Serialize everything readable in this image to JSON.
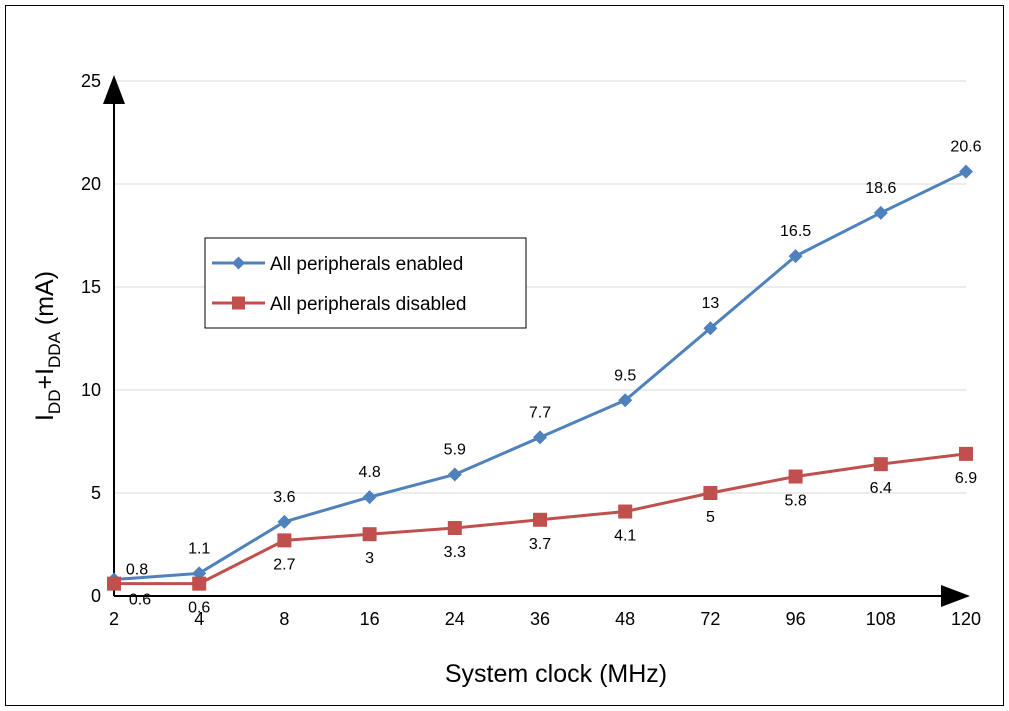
{
  "chart_data": {
    "type": "line",
    "categories": [
      "2",
      "4",
      "8",
      "16",
      "24",
      "36",
      "48",
      "72",
      "96",
      "108",
      "120"
    ],
    "series": [
      {
        "name": "All peripherals enabled",
        "color": "#4f81bd",
        "marker": "diamond",
        "values": [
          0.8,
          1.1,
          3.6,
          4.8,
          5.9,
          7.7,
          9.5,
          13,
          16.5,
          18.6,
          20.6
        ],
        "labels": [
          "0.8",
          "1.1",
          "3.6",
          "4.8",
          "5.9",
          "7.7",
          "9.5",
          "13",
          "16.5",
          "18.6",
          "20.6"
        ]
      },
      {
        "name": "All peripherals disabled",
        "color": "#c0504d",
        "marker": "square",
        "values": [
          0.6,
          0.6,
          2.7,
          3,
          3.3,
          3.7,
          4.1,
          5,
          5.8,
          6.4,
          6.9
        ],
        "labels": [
          "0.6",
          "0.6",
          "2.7",
          "3",
          "3.3",
          "3.7",
          "4.1",
          "5",
          "5.8",
          "6.4",
          "6.9"
        ]
      }
    ],
    "xlabel": "System clock (MHz)",
    "ylabel": {
      "base": "I",
      "sub1": "DD",
      "plus": "+I",
      "sub2": "DDA",
      "unit": " (mA)"
    },
    "ylim": [
      0,
      25
    ],
    "yticks": [
      "0",
      "5",
      "10",
      "15",
      "20",
      "25"
    ],
    "grid": true,
    "legend_position": "upper-left"
  }
}
